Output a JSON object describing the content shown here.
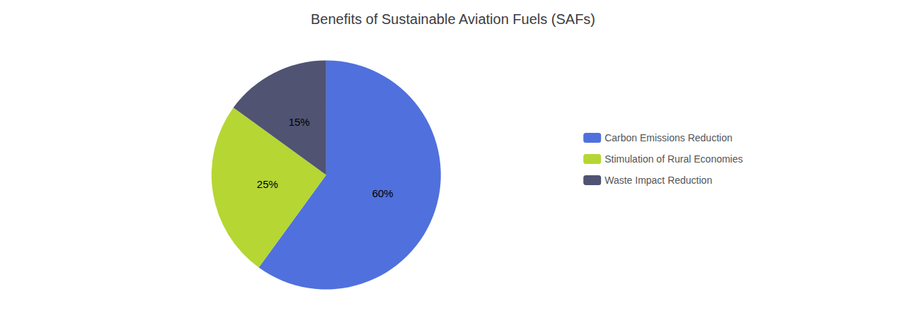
{
  "chart_data": {
    "type": "pie",
    "title": "Benefits of Sustainable Aviation Fuels (SAFs)",
    "categories": [
      "Carbon Emissions Reduction",
      "Stimulation of Rural Economies",
      "Waste Impact Reduction"
    ],
    "values": [
      60,
      25,
      15
    ],
    "value_labels": [
      "60%",
      "25%",
      "15%"
    ],
    "data_labels": true,
    "legend": "right"
  }
}
